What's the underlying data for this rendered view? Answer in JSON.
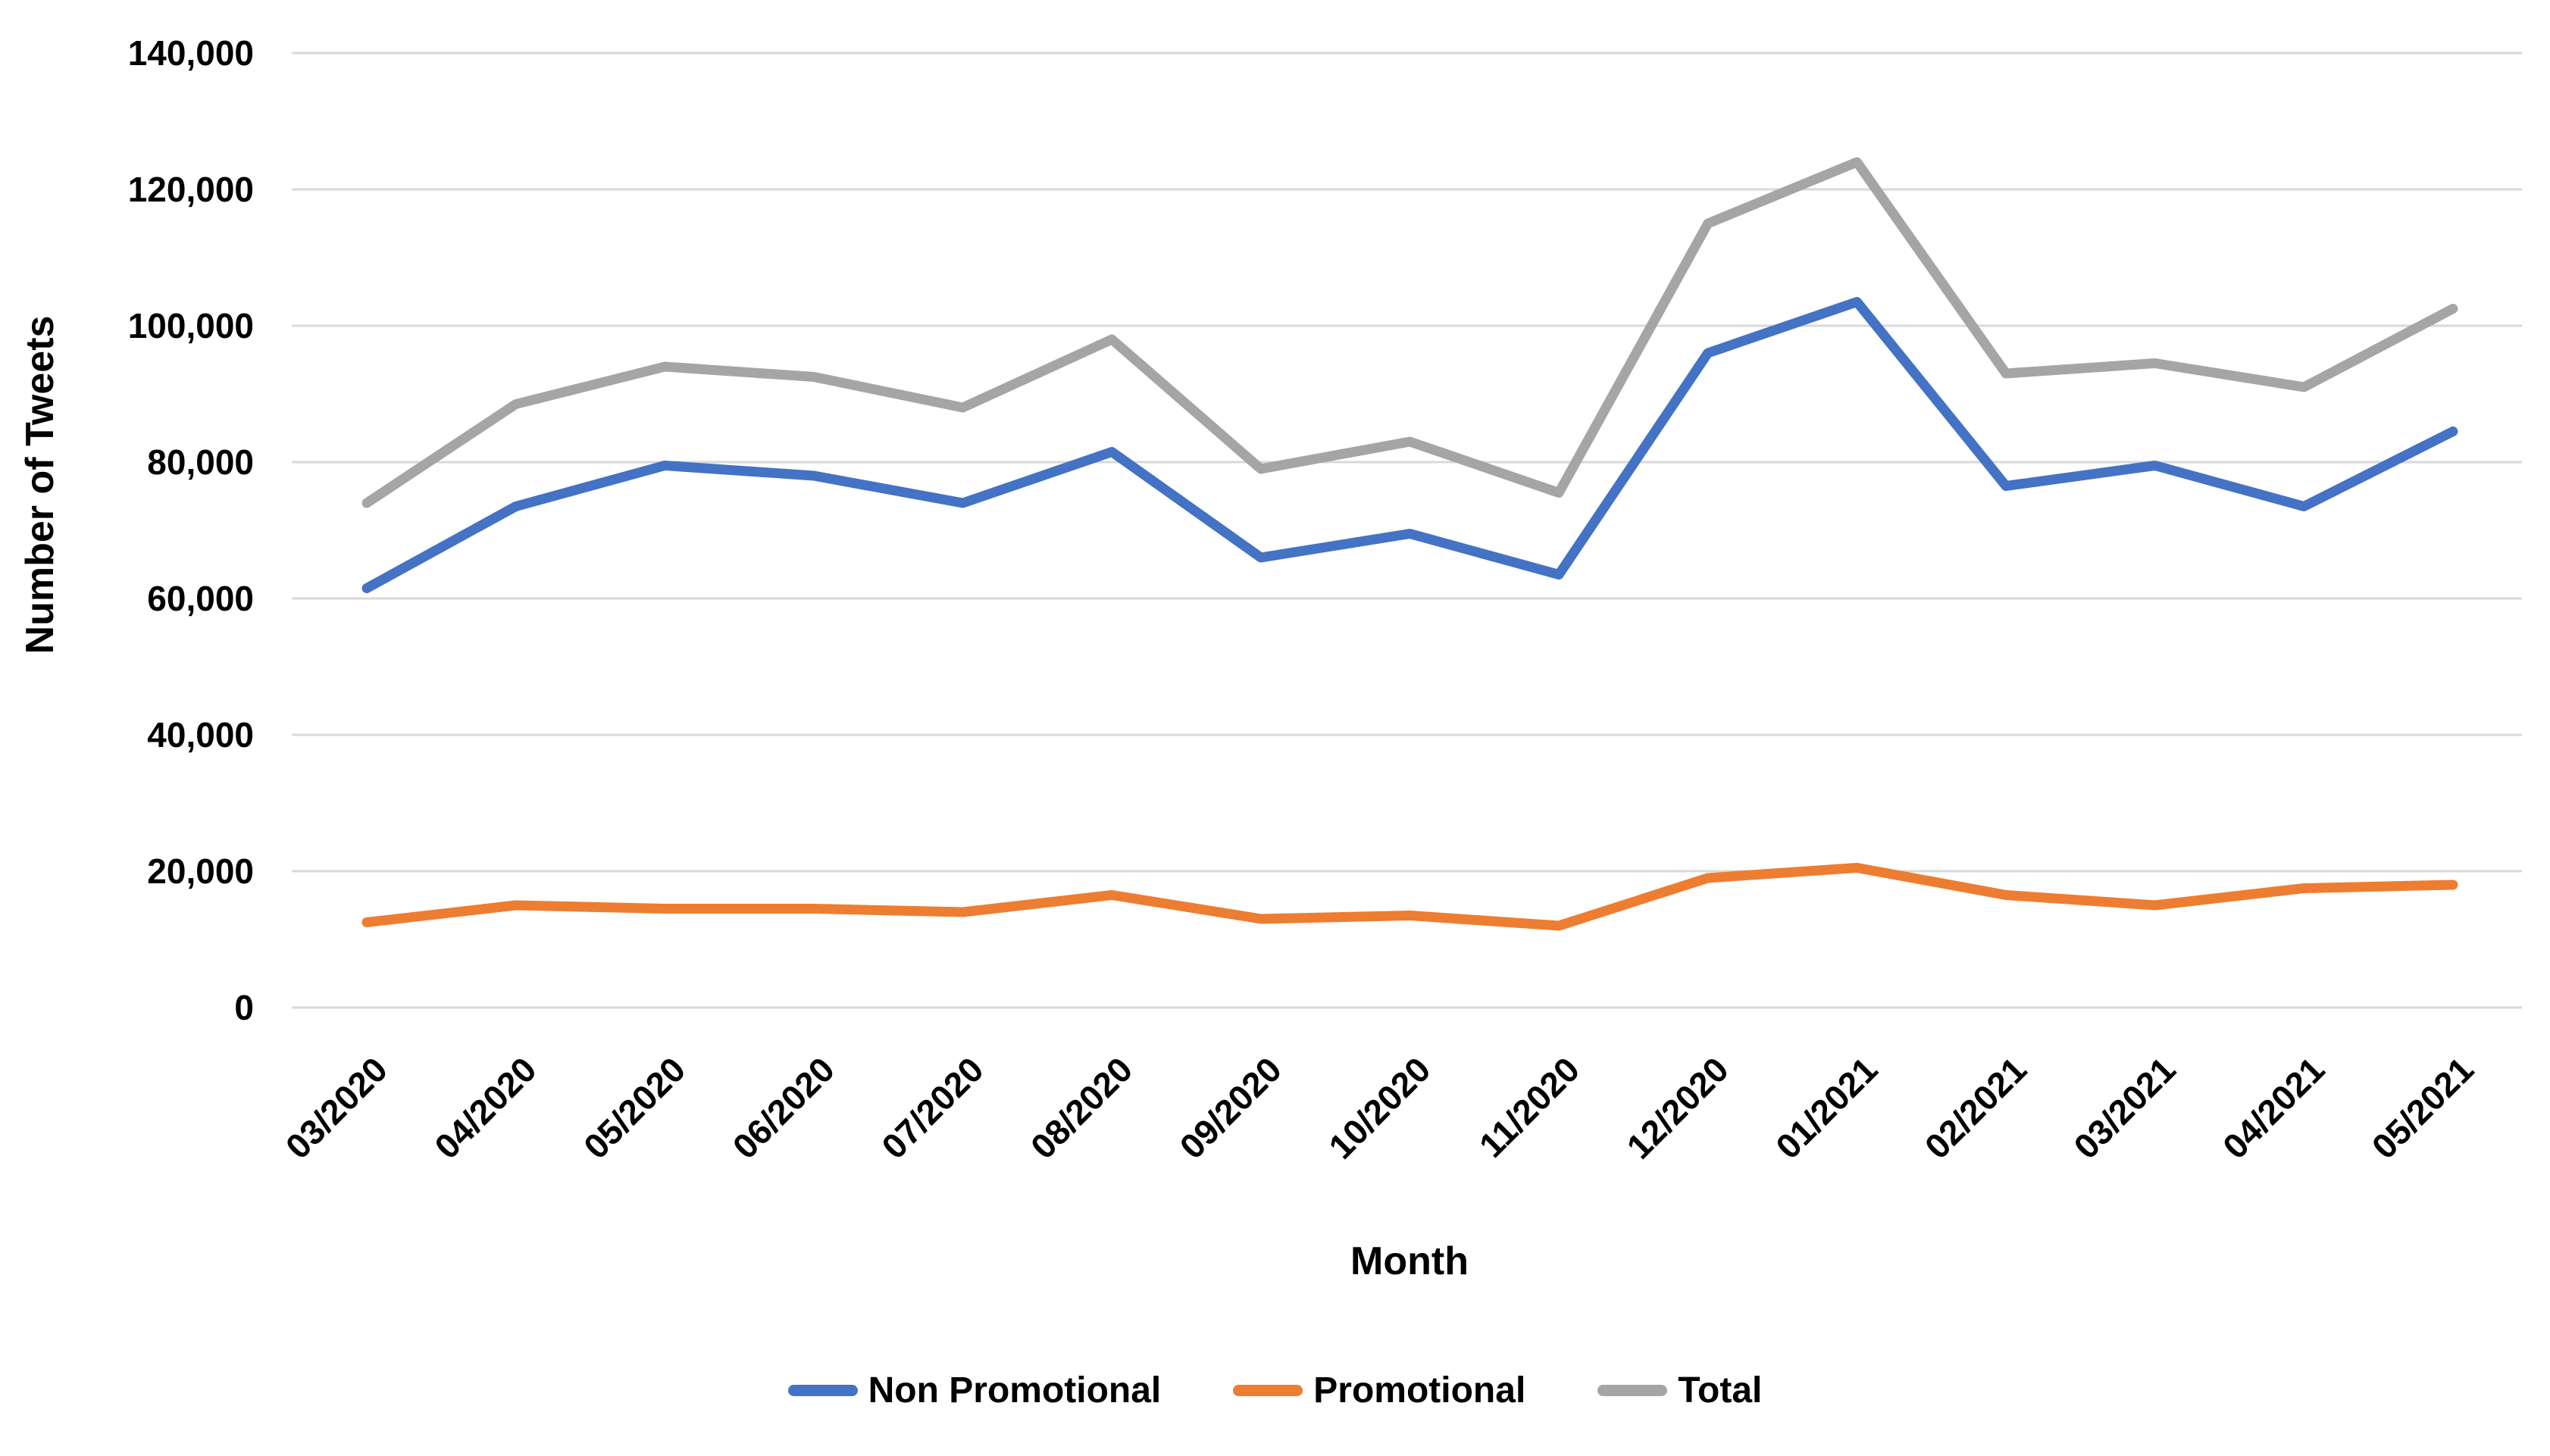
{
  "chart_data": {
    "type": "line",
    "title": "",
    "xlabel": "Month",
    "ylabel": "Number of Tweets",
    "categories": [
      "03/2020",
      "04/2020",
      "05/2020",
      "06/2020",
      "07/2020",
      "08/2020",
      "09/2020",
      "10/2020",
      "11/2020",
      "12/2020",
      "01/2021",
      "02/2021",
      "03/2021",
      "04/2021",
      "05/2021"
    ],
    "series": [
      {
        "name": "Non Promotional",
        "color": "#4472C4",
        "values": [
          61500,
          73500,
          79500,
          78000,
          74000,
          81500,
          66000,
          69500,
          63500,
          96000,
          103500,
          76500,
          79500,
          73500,
          84500
        ]
      },
      {
        "name": "Promotional",
        "color": "#ED7D31",
        "values": [
          12500,
          15000,
          14500,
          14500,
          14000,
          16500,
          13000,
          13500,
          12000,
          19000,
          20500,
          16500,
          15000,
          17500,
          18000
        ]
      },
      {
        "name": "Total",
        "color": "#A5A5A5",
        "values": [
          74000,
          88500,
          94000,
          92500,
          88000,
          98000,
          79000,
          83000,
          75500,
          115000,
          124000,
          93000,
          94500,
          91000,
          102500
        ]
      }
    ],
    "ylim": [
      0,
      140000
    ],
    "ytick_step": 20000,
    "ytick_labels": [
      "0",
      "20,000",
      "40,000",
      "60,000",
      "80,000",
      "100,000",
      "120,000",
      "140,000"
    ],
    "grid": "horizontal",
    "legend_position": "bottom"
  },
  "colors": {
    "background": "#FFFFFF",
    "gridline": "#D9D9D9",
    "text": "#000000"
  }
}
